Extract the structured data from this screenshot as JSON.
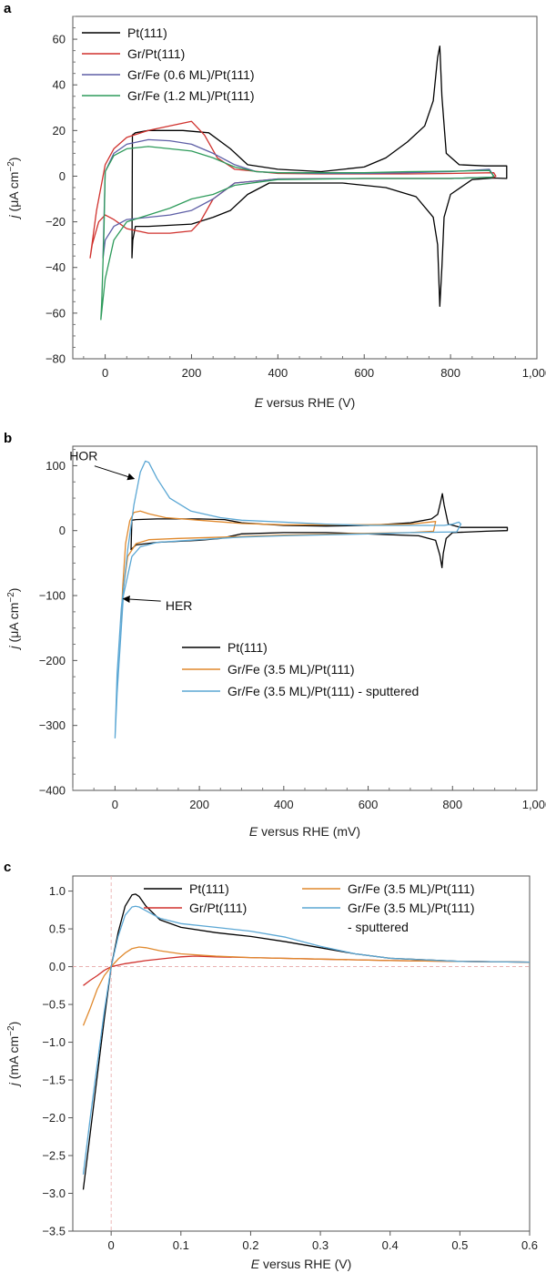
{
  "chart_data": [
    {
      "panel": "a",
      "type": "line",
      "xlabel_italic": "E",
      "xlabel_rest": " versus RHE (V)",
      "ylabel_italic": "j",
      "ylabel_rest": " (μA cm",
      "ylabel_sup": "−2",
      "ylabel_end": ")",
      "xlim": [
        -75,
        1000
      ],
      "ylim": [
        -80,
        70
      ],
      "xticks": [
        0,
        200,
        400,
        600,
        800,
        1000
      ],
      "xtick_labels": [
        "0",
        "200",
        "400",
        "600",
        "800",
        "1,000"
      ],
      "yticks": [
        -80,
        -60,
        -40,
        -20,
        0,
        20,
        40,
        60
      ],
      "ytick_labels": [
        "−80",
        "−60",
        "−40",
        "−20",
        "0",
        "20",
        "40",
        "60"
      ],
      "series": [
        {
          "name": "Pt(111)",
          "color": "#000000",
          "x": [
            62,
            63,
            70,
            100,
            180,
            240,
            290,
            330,
            400,
            500,
            600,
            650,
            700,
            740,
            760,
            770,
            775,
            780,
            790,
            820,
            880,
            930,
            930,
            900,
            850,
            800,
            785,
            780,
            775,
            770,
            760,
            720,
            650,
            550,
            450,
            380,
            330,
            290,
            250,
            200,
            100,
            70,
            64,
            62
          ],
          "y": [
            -36,
            18,
            19,
            20,
            20,
            19,
            12,
            5,
            3,
            2,
            4,
            8,
            15,
            22,
            33,
            52,
            57,
            35,
            10,
            5,
            4.5,
            4.5,
            -1,
            -0.8,
            -1.5,
            -8,
            -18,
            -40,
            -57,
            -30,
            -18,
            -9,
            -5,
            -3,
            -3,
            -3,
            -8,
            -15,
            -18,
            -21,
            -22,
            -22,
            -28,
            -36
          ]
        },
        {
          "name": "Gr/Pt(111)",
          "color": "#d0312d",
          "x": [
            -35,
            -20,
            0,
            20,
            50,
            100,
            150,
            200,
            230,
            260,
            300,
            400,
            500,
            600,
            700,
            800,
            900,
            905,
            900,
            800,
            600,
            400,
            300,
            250,
            220,
            200,
            150,
            100,
            50,
            20,
            0,
            -15,
            -30,
            -35
          ],
          "y": [
            -36,
            -15,
            5,
            12,
            17,
            20,
            22,
            24,
            18,
            8,
            3,
            1.2,
            1,
            1,
            1,
            1.2,
            1.5,
            0,
            -0.5,
            -1,
            -1,
            -1.2,
            -3,
            -10,
            -20,
            -24,
            -25,
            -25,
            -23,
            -19,
            -17,
            -20,
            -30,
            -36
          ]
        },
        {
          "name": "Gr/Fe (0.6 ML)/Pt(111)",
          "color": "#5e5fa6",
          "x": [
            -5,
            -4,
            0,
            20,
            50,
            100,
            150,
            200,
            250,
            300,
            350,
            400,
            500,
            600,
            700,
            800,
            890,
            900,
            895,
            800,
            600,
            400,
            300,
            250,
            200,
            150,
            100,
            50,
            20,
            0,
            -5
          ],
          "y": [
            -36,
            -28,
            2,
            10,
            14,
            16,
            15.5,
            14,
            10,
            5,
            2,
            1.5,
            1.2,
            1.2,
            1.5,
            2,
            3,
            0,
            -0.5,
            -1,
            -1,
            -1.2,
            -3,
            -10,
            -15,
            -17,
            -18,
            -19,
            -22,
            -28,
            -36
          ]
        },
        {
          "name": "Gr/Fe (1.2 ML)/Pt(111)",
          "color": "#2e9b5b",
          "x": [
            -10,
            -8,
            -3,
            0,
            20,
            50,
            100,
            200,
            250,
            300,
            350,
            400,
            500,
            600,
            700,
            800,
            890,
            900,
            895,
            800,
            600,
            400,
            300,
            250,
            200,
            150,
            100,
            50,
            20,
            0,
            -10
          ],
          "y": [
            -63,
            -55,
            -25,
            2,
            9,
            12,
            13,
            11,
            8,
            4,
            2,
            1.5,
            1.5,
            1.5,
            2,
            2.2,
            2.5,
            0,
            -0.5,
            -1,
            -1,
            -1.5,
            -4,
            -8,
            -10,
            -14,
            -17,
            -20,
            -28,
            -45,
            -63
          ]
        }
      ],
      "legend": [
        "Pt(111)",
        "Gr/Pt(111)",
        "Gr/Fe (0.6 ML)/Pt(111)",
        "Gr/Fe (1.2 ML)/Pt(111)"
      ]
    },
    {
      "panel": "b",
      "type": "line",
      "xlabel_italic": "E",
      "xlabel_rest": " versus RHE (mV)",
      "ylabel_italic": "j",
      "ylabel_rest": " (μA cm",
      "ylabel_sup": "−2",
      "ylabel_end": ")",
      "xlim": [
        -100,
        1000
      ],
      "ylim": [
        -400,
        130
      ],
      "xticks": [
        0,
        200,
        400,
        600,
        800,
        1000
      ],
      "xtick_labels": [
        "0",
        "200",
        "400",
        "600",
        "800",
        "1,000"
      ],
      "yticks": [
        -400,
        -300,
        -200,
        -100,
        0,
        100
      ],
      "ytick_labels": [
        "−400",
        "−300",
        "−200",
        "−100",
        "0",
        "100"
      ],
      "series": [
        {
          "name": "Pt(111)",
          "color": "#000000",
          "x": [
            38,
            40,
            50,
            100,
            200,
            260,
            300,
            400,
            500,
            600,
            700,
            750,
            765,
            772,
            776,
            780,
            790,
            820,
            880,
            930,
            930,
            880,
            800,
            785,
            778,
            775,
            770,
            760,
            720,
            600,
            500,
            400,
            300,
            250,
            200,
            100,
            50,
            40,
            38
          ],
          "y": [
            -30,
            16,
            17,
            18,
            18,
            17,
            12,
            8,
            7,
            8,
            12,
            18,
            25,
            45,
            57,
            40,
            10,
            5,
            5,
            5,
            0,
            -1,
            -3,
            -12,
            -35,
            -57,
            -38,
            -15,
            -8,
            -5,
            -3,
            -3,
            -5,
            -12,
            -15,
            -18,
            -22,
            -28,
            -30
          ]
        },
        {
          "name": "Gr/Fe (3.5 ML)/Pt(111)",
          "color": "#e0892d",
          "x": [
            15,
            18,
            25,
            35,
            45,
            60,
            80,
            120,
            200,
            300,
            400,
            500,
            600,
            700,
            760,
            755,
            700,
            600,
            400,
            260,
            150,
            80,
            50,
            30,
            20,
            15
          ],
          "y": [
            -142,
            -90,
            -20,
            15,
            28,
            30,
            26,
            20,
            16,
            11,
            9,
            9,
            9,
            10,
            14,
            -1,
            -3,
            -4,
            -7,
            -10,
            -12,
            -14,
            -20,
            -40,
            -90,
            -142
          ]
        },
        {
          "name": "Gr/Fe (3.5 ML)/Pt(111) - sputtered",
          "color": "#5ba7d4",
          "x": [
            0,
            5,
            15,
            30,
            45,
            60,
            72,
            80,
            100,
            130,
            180,
            250,
            300,
            400,
            500,
            600,
            700,
            780,
            800,
            815,
            820,
            810,
            700,
            600,
            400,
            300,
            200,
            100,
            60,
            40,
            20,
            5,
            0
          ],
          "y": [
            -320,
            -220,
            -120,
            -30,
            40,
            90,
            107,
            105,
            80,
            50,
            30,
            20,
            16,
            13,
            10,
            8,
            8,
            8,
            10,
            13,
            10,
            -2,
            -3,
            -5,
            -8,
            -10,
            -14,
            -18,
            -25,
            -40,
            -100,
            -250,
            -320
          ]
        }
      ],
      "legend": [
        "Pt(111)",
        "Gr/Fe (3.5 ML)/Pt(111)",
        "Gr/Fe (3.5 ML)/Pt(111) - sputtered"
      ],
      "annotations": [
        {
          "text": "HOR",
          "x": 55,
          "y": 108
        },
        {
          "text": "HER",
          "x": 130,
          "y": -117
        }
      ]
    },
    {
      "panel": "c",
      "type": "line",
      "xlabel_italic": "E",
      "xlabel_rest": " versus RHE (V)",
      "ylabel_italic": "j",
      "ylabel_rest": " (mA cm",
      "ylabel_sup": "−2",
      "ylabel_end": ")",
      "xlim": [
        -0.055,
        0.6
      ],
      "ylim": [
        -3.5,
        1.2
      ],
      "xticks": [
        0,
        0.1,
        0.2,
        0.3,
        0.4,
        0.5,
        0.6
      ],
      "xtick_labels": [
        "0",
        "0.1",
        "0.2",
        "0.3",
        "0.4",
        "0.5",
        "0.6"
      ],
      "yticks": [
        -3.5,
        -3.0,
        -2.5,
        -2.0,
        -1.5,
        -1.0,
        -0.5,
        0.0,
        0.5,
        1.0
      ],
      "ytick_labels": [
        "−3.5",
        "−3.0",
        "−2.5",
        "−2.0",
        "−1.5",
        "−1.0",
        "−0.5",
        "0.0",
        "0.5",
        "1.0"
      ],
      "series": [
        {
          "name": "Pt(111)",
          "color": "#000000",
          "x": [
            -0.04,
            -0.03,
            -0.02,
            -0.01,
            0,
            0.01,
            0.02,
            0.03,
            0.035,
            0.04,
            0.05,
            0.07,
            0.1,
            0.15,
            0.2,
            0.25,
            0.3,
            0.35,
            0.4,
            0.5,
            0.6
          ],
          "y": [
            -2.95,
            -2.2,
            -1.45,
            -0.7,
            0.0,
            0.45,
            0.8,
            0.95,
            0.96,
            0.93,
            0.8,
            0.62,
            0.52,
            0.45,
            0.4,
            0.33,
            0.25,
            0.17,
            0.11,
            0.07,
            0.06
          ]
        },
        {
          "name": "Gr/Pt(111)",
          "color": "#d0312d",
          "x": [
            -0.04,
            -0.03,
            -0.02,
            -0.01,
            0,
            0.02,
            0.05,
            0.08,
            0.1,
            0.12,
            0.15,
            0.2,
            0.3,
            0.4,
            0.5,
            0.6
          ],
          "y": [
            -0.25,
            -0.18,
            -0.12,
            -0.05,
            0.0,
            0.04,
            0.08,
            0.11,
            0.13,
            0.14,
            0.13,
            0.12,
            0.1,
            0.08,
            0.07,
            0.06
          ]
        },
        {
          "name": "Gr/Fe (3.5 ML)/Pt(111)",
          "color": "#e0892d",
          "x": [
            -0.04,
            -0.03,
            -0.02,
            -0.01,
            0,
            0.01,
            0.02,
            0.03,
            0.04,
            0.05,
            0.07,
            0.1,
            0.15,
            0.2,
            0.3,
            0.4,
            0.5,
            0.6
          ],
          "y": [
            -0.78,
            -0.55,
            -0.3,
            -0.12,
            0.0,
            0.1,
            0.18,
            0.24,
            0.26,
            0.25,
            0.21,
            0.17,
            0.14,
            0.12,
            0.1,
            0.08,
            0.07,
            0.06
          ]
        },
        {
          "name": "Gr/Fe (3.5 ML)/Pt(111) - sputtered",
          "color": "#5ba7d4",
          "x": [
            -0.04,
            -0.03,
            -0.02,
            -0.01,
            0,
            0.01,
            0.02,
            0.03,
            0.035,
            0.04,
            0.05,
            0.07,
            0.1,
            0.15,
            0.2,
            0.25,
            0.3,
            0.35,
            0.4,
            0.5,
            0.6
          ],
          "y": [
            -2.75,
            -2.0,
            -1.3,
            -0.6,
            0.0,
            0.4,
            0.68,
            0.79,
            0.8,
            0.79,
            0.74,
            0.64,
            0.57,
            0.52,
            0.47,
            0.39,
            0.27,
            0.17,
            0.11,
            0.07,
            0.06
          ]
        }
      ],
      "legend": [
        "Pt(111)",
        "Gr/Pt(111)",
        "Gr/Fe (3.5 ML)/Pt(111)",
        "Gr/Fe (3.5 ML)/Pt(111)",
        "- sputtered"
      ]
    }
  ]
}
